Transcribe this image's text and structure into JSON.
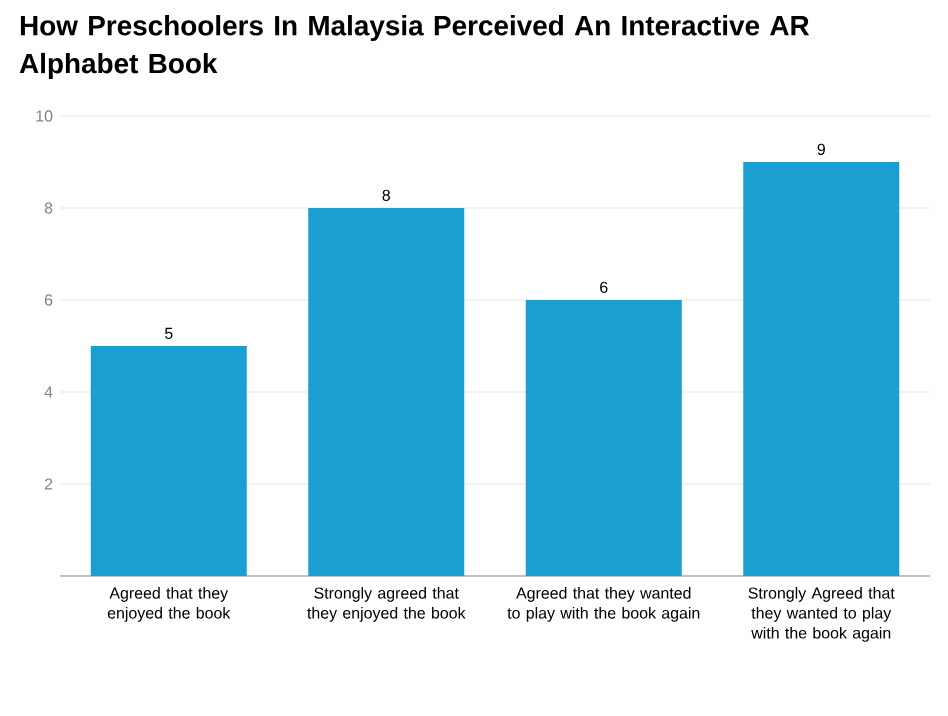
{
  "chart_data": {
    "type": "bar",
    "title": "How Preschoolers In Malaysia Perceived An Interactive AR Alphabet Book",
    "categories": [
      "Agreed that they enjoyed the book",
      "Strongly agreed that they enjoyed the book",
      "Agreed that they wanted to play with the book again",
      "Strongly Agreed that they wanted to play with the book again"
    ],
    "values": [
      5,
      8,
      6,
      9
    ],
    "color": "#1a9fd0",
    "ylim": [
      0,
      10
    ],
    "yticks": [
      2,
      4,
      6,
      8,
      10
    ],
    "grid": "y",
    "data_labels": true
  }
}
